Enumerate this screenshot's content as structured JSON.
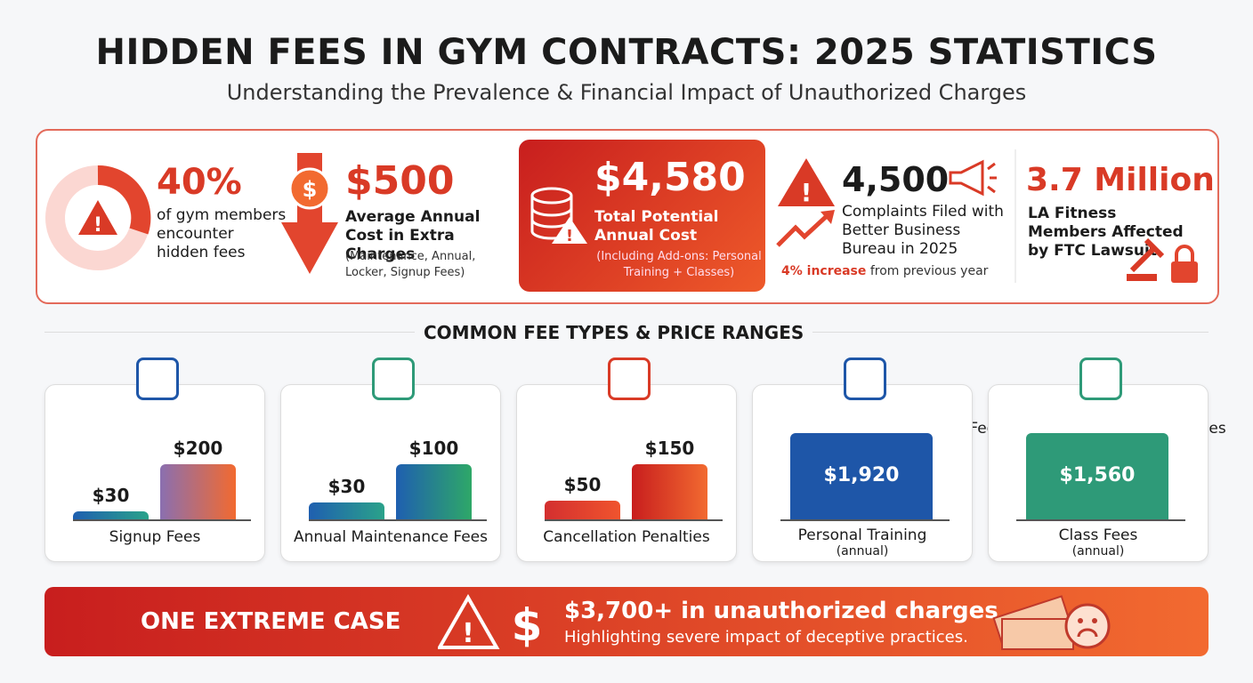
{
  "header": {
    "title": "HIDDEN FEES IN GYM CONTRACTS: 2025 STATISTICS",
    "subtitle": "Understanding the Prevalence & Financial Impact of Unauthorized Charges"
  },
  "stats": [
    {
      "value": "40%",
      "text": "of gym members encounter hidden fees"
    },
    {
      "value": "$500",
      "text": "Average Annual Cost in Extra Charges",
      "note": "(Maintenance, Annual, Locker, Signup Fees)"
    },
    {
      "value": "$4,580",
      "text": "Total Potential Annual Cost",
      "note": "(Including Add-ons: Personal Training + Classes)"
    },
    {
      "value": "4,500",
      "text": "Complaints Filed with Better Business Bureau in 2025",
      "change": "4% increase",
      "change_text": "from previous year"
    },
    {
      "value": "3.7 Million",
      "text": "LA Fitness Members Affected by FTC Lawsuit"
    }
  ],
  "section_title": "COMMON FEE TYPES & PRICE RANGES",
  "fee_types": [
    {
      "title": "Signup Fees",
      "bars": [
        {
          "value": 30,
          "label": "$30"
        },
        {
          "value": 200,
          "label": "$200"
        }
      ],
      "caption": "Signup Fees"
    },
    {
      "title": "Annual Maintenance Fees",
      "bars": [
        {
          "value": 30,
          "label": "$30"
        },
        {
          "value": 100,
          "label": "$100"
        }
      ],
      "caption": "Annual Maintenance Fees"
    },
    {
      "title": "Cancellation Penalties",
      "bars": [
        {
          "value": 50,
          "label": "$50"
        },
        {
          "value": 150,
          "label": "$150"
        }
      ],
      "caption": "Cancellation Penalties"
    },
    {
      "bars": [
        {
          "value": 1920,
          "label": "$1,920"
        }
      ],
      "caption": "Personal Training",
      "note": "(annual)"
    },
    {
      "bars": [
        {
          "value": 1560,
          "label": "$1,560"
        }
      ],
      "caption": "Class Fees",
      "note": "(annual)"
    }
  ],
  "banner": {
    "label": "ONE EXTREME CASE",
    "headline": "$3,700+ in unauthorized charges",
    "subtext": "Highlighting severe impact of deceptive practices."
  }
}
